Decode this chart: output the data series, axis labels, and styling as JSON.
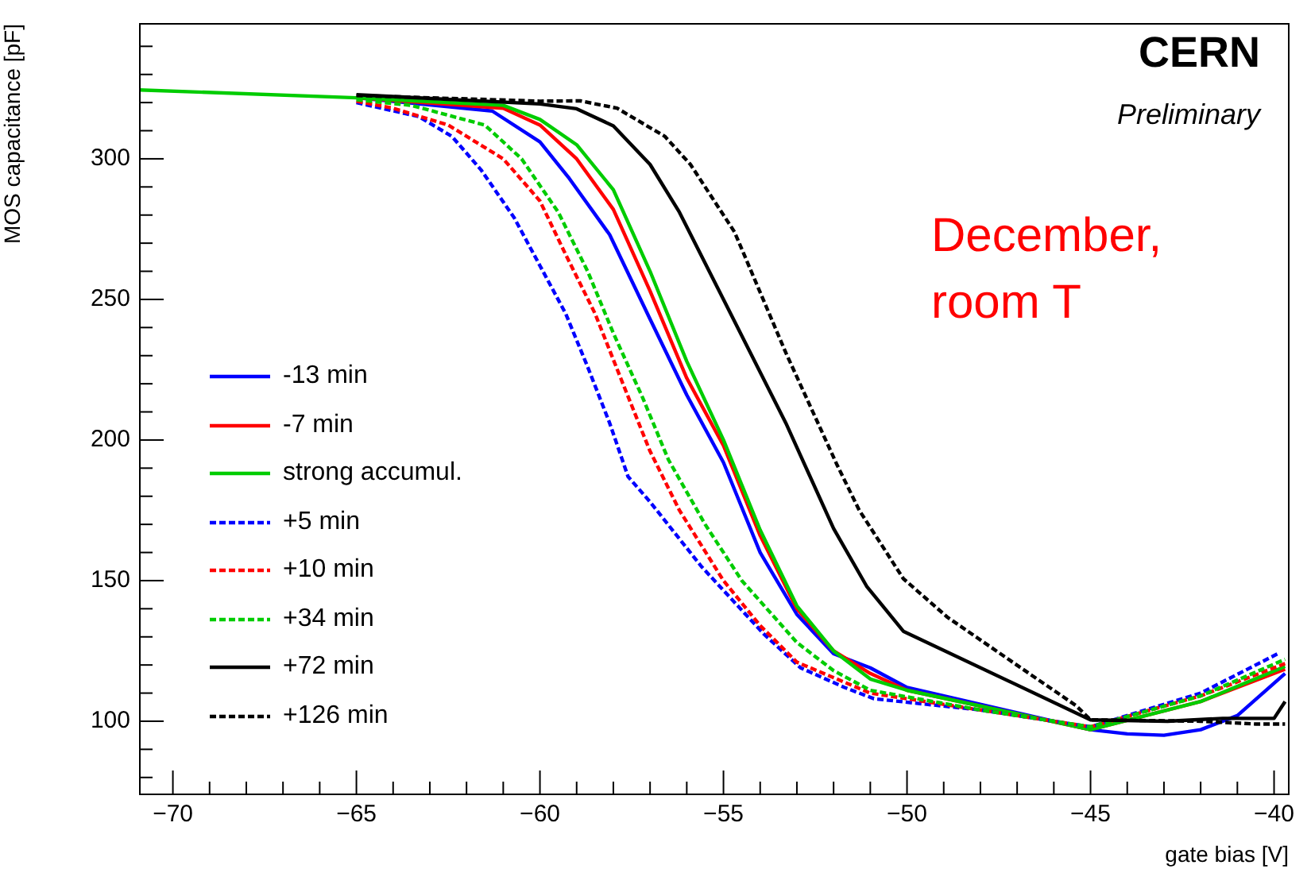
{
  "chart_data": {
    "type": "line",
    "xlabel": "gate bias [V]",
    "ylabel": "MOS capacitance [pF]",
    "annotations": [
      "CERN",
      "Preliminary",
      "December, room T"
    ],
    "xlim": [
      -70.9,
      -39.6
    ],
    "ylim": [
      74,
      348
    ],
    "xticks": [
      -70,
      {
        "value": -69,
        "label": null
      },
      {
        "value": -68,
        "label": null
      },
      {
        "value": -67,
        "label": null
      },
      {
        "value": -66,
        "label": null
      },
      -65,
      {
        "value": -64,
        "label": null
      },
      {
        "value": -63,
        "label": null
      },
      {
        "value": -62,
        "label": null
      },
      {
        "value": -61,
        "label": null
      },
      -60,
      {
        "value": -59,
        "label": null
      },
      {
        "value": -58,
        "label": null
      },
      {
        "value": -57,
        "label": null
      },
      {
        "value": -56,
        "label": null
      },
      -55,
      {
        "value": -54,
        "label": null
      },
      {
        "value": -53,
        "label": null
      },
      {
        "value": -52,
        "label": null
      },
      {
        "value": -51,
        "label": null
      },
      -50,
      {
        "value": -49,
        "label": null
      },
      {
        "value": -48,
        "label": null
      },
      {
        "value": -47,
        "label": null
      },
      {
        "value": -46,
        "label": null
      },
      -45,
      {
        "value": -44,
        "label": null
      },
      {
        "value": -43,
        "label": null
      },
      {
        "value": -42,
        "label": null
      },
      {
        "value": -41,
        "label": null
      },
      -40
    ],
    "yticks": [
      {
        "value": 80,
        "label": null
      },
      {
        "value": 90,
        "label": null
      },
      100,
      {
        "value": 110,
        "label": null
      },
      {
        "value": 120,
        "label": null
      },
      {
        "value": 130,
        "label": null
      },
      {
        "value": 140,
        "label": null
      },
      150,
      {
        "value": 160,
        "label": null
      },
      {
        "value": 170,
        "label": null
      },
      {
        "value": 180,
        "label": null
      },
      {
        "value": 190,
        "label": null
      },
      200,
      {
        "value": 210,
        "label": null
      },
      {
        "value": 220,
        "label": null
      },
      {
        "value": 230,
        "label": null
      },
      {
        "value": 240,
        "label": null
      },
      250,
      {
        "value": 260,
        "label": null
      },
      {
        "value": 270,
        "label": null
      },
      {
        "value": 280,
        "label": null
      },
      {
        "value": 290,
        "label": null
      },
      300,
      {
        "value": 310,
        "label": null
      },
      {
        "value": 320,
        "label": null
      },
      {
        "value": 330,
        "label": null
      },
      {
        "value": 340,
        "label": null
      }
    ],
    "grid": false,
    "legend": "bottom left",
    "marker": "none",
    "series": [
      {
        "name": "-13 min",
        "color": "#0000ff",
        "line_style": "solid",
        "x": [
          -65,
          -61.3,
          -60,
          -59.2,
          -58.1,
          -57,
          -56,
          -55,
          -54,
          -53,
          -52,
          -51,
          -50,
          -45,
          -44,
          -43,
          -42,
          -41,
          -39.7
        ],
        "values": [
          321.7,
          317,
          306,
          293,
          273,
          243,
          216,
          192,
          160,
          138,
          124,
          119,
          112,
          97,
          95.5,
          95,
          97,
          102,
          117
        ]
      },
      {
        "name": "-7 min",
        "color": "#ff0000",
        "line_style": "solid",
        "x": [
          -65,
          -61,
          -60,
          -59,
          -58,
          -57,
          -56,
          -55,
          -54,
          -53,
          -52,
          -51,
          -50,
          -45,
          -42,
          -39.7
        ],
        "values": [
          321.7,
          318,
          312,
          300,
          282,
          253,
          222,
          198,
          166,
          140,
          125,
          117,
          111,
          97,
          107,
          118.5
        ]
      },
      {
        "name": "strong accumul.",
        "color": "#00cc00",
        "line_style": "solid",
        "x": [
          -70.9,
          -65,
          -61,
          -60,
          -59,
          -58,
          -57,
          -56,
          -55,
          -54,
          -53,
          -52,
          -51,
          -50,
          -45,
          -42,
          -39.7
        ],
        "values": [
          324.5,
          321.7,
          319,
          314,
          305,
          289,
          260,
          228,
          200,
          168,
          141,
          125,
          115,
          111,
          97,
          107,
          119.5
        ]
      },
      {
        "name": "+5 min",
        "color": "#0000ff",
        "line_style": "dashed",
        "x": [
          -65,
          -63.3,
          -62.4,
          -61.6,
          -60.7,
          -60,
          -59.3,
          -58.7,
          -58.1,
          -57.6,
          -57,
          -55.6,
          -53.9,
          -52.9,
          -51.7,
          -50.9,
          -48,
          -45,
          -42,
          -39.9
        ],
        "values": [
          320,
          315,
          308,
          296,
          279,
          262,
          245,
          226,
          206,
          187,
          178,
          155,
          131,
          119,
          112,
          108,
          104,
          98,
          110,
          124
        ]
      },
      {
        "name": "+10 min",
        "color": "#ff0000",
        "line_style": "dashed",
        "x": [
          -65,
          -64,
          -62.5,
          -61,
          -60,
          -59.3,
          -58.5,
          -57.8,
          -57,
          -56.2,
          -55,
          -54,
          -53,
          -51,
          -48,
          -45,
          -42,
          -39.7
        ],
        "values": [
          320.5,
          318,
          312,
          300,
          285,
          266,
          245,
          222,
          196,
          175,
          150,
          134,
          121,
          110,
          104,
          98,
          109,
          120.5
        ]
      },
      {
        "name": "+34 min",
        "color": "#00cc00",
        "line_style": "dashed",
        "x": [
          -65,
          -63.5,
          -61.5,
          -60.5,
          -59.5,
          -58.7,
          -58,
          -57.2,
          -56.5,
          -55.5,
          -54.5,
          -53,
          -52,
          -51,
          -48,
          -45,
          -42,
          -39.7
        ],
        "values": [
          321,
          319,
          312,
          300,
          281,
          260,
          238,
          215,
          193,
          170,
          150,
          128,
          118,
          111,
          104,
          98,
          109,
          122
        ]
      },
      {
        "name": "+72 min",
        "color": "#000000",
        "line_style": "solid",
        "x": [
          -65,
          -60,
          -59,
          -58,
          -57,
          -56.2,
          -55,
          -53.3,
          -52,
          -51.1,
          -50.1,
          -45,
          -42.9,
          -41.4,
          -40,
          -39.7
        ],
        "values": [
          322.8,
          319.5,
          317.8,
          311.7,
          298,
          281,
          250,
          206,
          168.5,
          148,
          132,
          100.5,
          100,
          101,
          101,
          107
        ]
      },
      {
        "name": "+126 min",
        "color": "#000000",
        "line_style": "dashed",
        "x": [
          -65,
          -60,
          -58.9,
          -57.9,
          -56.6,
          -55.9,
          -54.7,
          -53.3,
          -51.9,
          -51.3,
          -50.1,
          -48.9,
          -46.9,
          -45.4,
          -45,
          -42,
          -40.5,
          -39.7
        ],
        "values": [
          322.5,
          320.5,
          320.6,
          318,
          308,
          298,
          274,
          231,
          191,
          175,
          150.7,
          137,
          119,
          105.6,
          100.5,
          100,
          99,
          99
        ]
      }
    ]
  }
}
